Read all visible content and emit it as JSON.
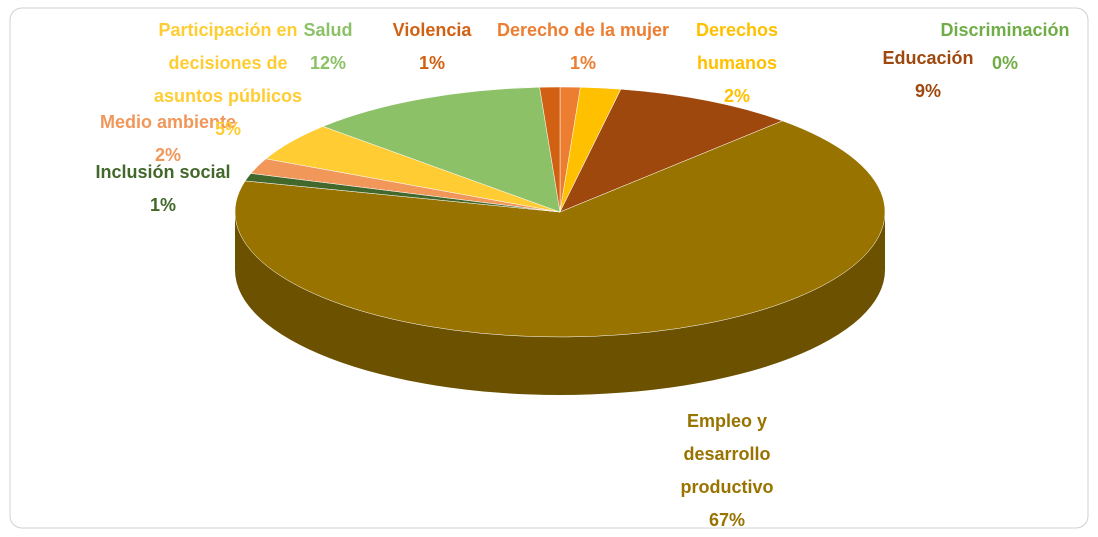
{
  "chart_data": {
    "type": "pie",
    "categories": [
      "Derecho de la mujer",
      "Derechos humanos",
      "Discriminación",
      "Educación",
      "Empleo y desarrollo productivo",
      "Inclusión social",
      "Medio ambiente",
      "Participación en decisiones de asuntos públicos",
      "Salud",
      "Violencia"
    ],
    "values": [
      1,
      2,
      0,
      9,
      67,
      1,
      2,
      5,
      12,
      1
    ],
    "value_labels": [
      "1%",
      "2%",
      "0%",
      "9%",
      "67%",
      "1%",
      "2%",
      "5%",
      "12%",
      "1%"
    ],
    "colors": [
      "#ed7d31",
      "#ffc000",
      "#70ad47",
      "#9e480e",
      "#997300",
      "#43682b",
      "#f1975a",
      "#ffcd33",
      "#8cc168",
      "#d26012"
    ]
  }
}
